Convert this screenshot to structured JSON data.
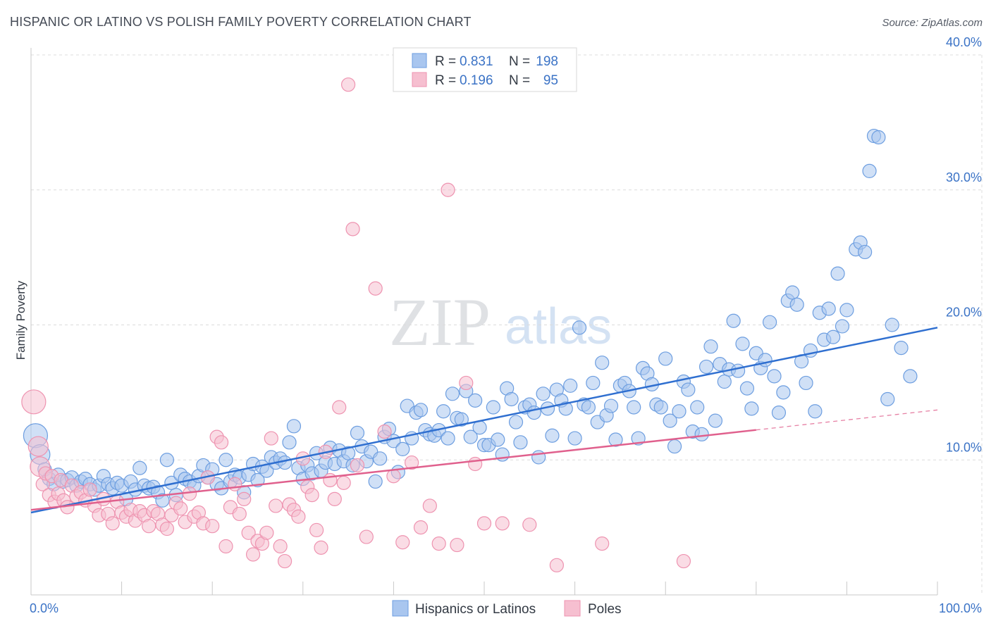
{
  "title": "HISPANIC OR LATINO VS POLISH FAMILY POVERTY CORRELATION CHART",
  "source": "Source: ZipAtlas.com",
  "watermark": {
    "zip": "ZIP",
    "atlas": "atlas"
  },
  "colors": {
    "blue_fill": "#a9c6ef",
    "blue_stroke": "#6d9ee0",
    "blue_line": "#2f6fd0",
    "pink_fill": "#f6bfd0",
    "pink_stroke": "#ee93b0",
    "pink_line": "#e0608d",
    "grid": "#dcdcdc",
    "tick_label": "#3b73c6"
  },
  "legend": {
    "rows": [
      {
        "r_label": "R =",
        "r_value": "0.831",
        "n_label": "N =",
        "n_value": "198"
      },
      {
        "r_label": "R =",
        "r_value": "0.196",
        "n_label": "N =",
        "n_value": "95"
      }
    ]
  },
  "chart_data": {
    "type": "scatter",
    "title": "HISPANIC OR LATINO VS POLISH FAMILY POVERTY CORRELATION CHART",
    "xlabel": "",
    "ylabel": "Family Poverty",
    "xlim": [
      0,
      100
    ],
    "ylim": [
      0,
      40
    ],
    "x_tick_labels": [
      "0.0%",
      "100.0%"
    ],
    "y_ticks": [
      10,
      20,
      30,
      40
    ],
    "y_tick_labels": [
      "10.0%",
      "20.0%",
      "30.0%",
      "40.0%"
    ],
    "grid": true,
    "legend_placement": "top-center",
    "series": [
      {
        "name": "Hispanics or Latinos",
        "R": 0.831,
        "N": 198,
        "trend": {
          "x": [
            0,
            100
          ],
          "y": [
            6.1,
            19.8
          ],
          "dashed_after": null
        },
        "points": [
          [
            0.5,
            11.8
          ],
          [
            1,
            10.4
          ],
          [
            1.5,
            9.3
          ],
          [
            2,
            8.6
          ],
          [
            2.5,
            8.2
          ],
          [
            3,
            8.9
          ],
          [
            3.5,
            8.4
          ],
          [
            4,
            8.5
          ],
          [
            4.5,
            8.7
          ],
          [
            5,
            8.1
          ],
          [
            5.5,
            8.4
          ],
          [
            6,
            8.6
          ],
          [
            6.5,
            8.2
          ],
          [
            7,
            7.8
          ],
          [
            7.5,
            8.1
          ],
          [
            8,
            8.8
          ],
          [
            8.5,
            8.2
          ],
          [
            9,
            7.9
          ],
          [
            9.5,
            8.3
          ],
          [
            10,
            8.1
          ],
          [
            10.5,
            7.1
          ],
          [
            11,
            8.4
          ],
          [
            11.5,
            7.8
          ],
          [
            12,
            9.4
          ],
          [
            12.5,
            8.1
          ],
          [
            13,
            7.9
          ],
          [
            13.5,
            8.0
          ],
          [
            14,
            7.6
          ],
          [
            14.5,
            7.0
          ],
          [
            15,
            10.0
          ],
          [
            15.5,
            8.3
          ],
          [
            16,
            7.4
          ],
          [
            16.5,
            8.9
          ],
          [
            17,
            8.6
          ],
          [
            17.5,
            8.4
          ],
          [
            18,
            8.1
          ],
          [
            18.5,
            8.8
          ],
          [
            19,
            9.6
          ],
          [
            19.5,
            8.7
          ],
          [
            20,
            9.3
          ],
          [
            20.5,
            8.2
          ],
          [
            21,
            7.9
          ],
          [
            21.5,
            10.0
          ],
          [
            22,
            8.4
          ],
          [
            22.5,
            8.9
          ],
          [
            23,
            8.7
          ],
          [
            23.5,
            7.6
          ],
          [
            24,
            8.9
          ],
          [
            24.5,
            9.7
          ],
          [
            25,
            8.5
          ],
          [
            25.5,
            9.5
          ],
          [
            26,
            9.2
          ],
          [
            26.5,
            10.2
          ],
          [
            27,
            9.8
          ],
          [
            27.5,
            10.1
          ],
          [
            28,
            9.8
          ],
          [
            28.5,
            11.3
          ],
          [
            29,
            12.5
          ],
          [
            29.5,
            9.4
          ],
          [
            30,
            8.6
          ],
          [
            30.5,
            9.6
          ],
          [
            31,
            9.0
          ],
          [
            31.5,
            10.5
          ],
          [
            32,
            9.2
          ],
          [
            32.5,
            9.8
          ],
          [
            33,
            10.9
          ],
          [
            33.5,
            9.7
          ],
          [
            34,
            10.7
          ],
          [
            34.5,
            9.9
          ],
          [
            35,
            10.5
          ],
          [
            35.5,
            9.6
          ],
          [
            36,
            12.0
          ],
          [
            36.5,
            11.0
          ],
          [
            37,
            9.9
          ],
          [
            37.5,
            10.6
          ],
          [
            38,
            8.4
          ],
          [
            38.5,
            10.1
          ],
          [
            39,
            11.7
          ],
          [
            39.5,
            12.3
          ],
          [
            40,
            11.4
          ],
          [
            40.5,
            9.1
          ],
          [
            41,
            10.8
          ],
          [
            41.5,
            14.0
          ],
          [
            42,
            11.6
          ],
          [
            42.5,
            13.5
          ],
          [
            43,
            13.7
          ],
          [
            43.5,
            12.2
          ],
          [
            44,
            11.9
          ],
          [
            44.5,
            11.8
          ],
          [
            45,
            12.2
          ],
          [
            45.5,
            13.6
          ],
          [
            46,
            11.6
          ],
          [
            46.5,
            14.9
          ],
          [
            47,
            13.1
          ],
          [
            47.5,
            13.0
          ],
          [
            48,
            15.1
          ],
          [
            48.5,
            11.7
          ],
          [
            49,
            14.4
          ],
          [
            49.5,
            12.4
          ],
          [
            50,
            11.1
          ],
          [
            50.5,
            11.1
          ],
          [
            51,
            13.9
          ],
          [
            51.5,
            11.5
          ],
          [
            52,
            10.4
          ],
          [
            52.5,
            15.3
          ],
          [
            53,
            14.5
          ],
          [
            53.5,
            12.8
          ],
          [
            54,
            11.3
          ],
          [
            54.5,
            13.9
          ],
          [
            55,
            14.1
          ],
          [
            55.5,
            13.5
          ],
          [
            56,
            10.2
          ],
          [
            56.5,
            14.9
          ],
          [
            57,
            13.8
          ],
          [
            57.5,
            11.8
          ],
          [
            58,
            15.2
          ],
          [
            58.5,
            14.4
          ],
          [
            59,
            13.8
          ],
          [
            59.5,
            15.5
          ],
          [
            60,
            11.6
          ],
          [
            60.5,
            19.8
          ],
          [
            61,
            14.1
          ],
          [
            61.5,
            13.9
          ],
          [
            62,
            15.7
          ],
          [
            62.5,
            12.8
          ],
          [
            63,
            17.2
          ],
          [
            63.5,
            13.3
          ],
          [
            64,
            14.0
          ],
          [
            64.5,
            11.5
          ],
          [
            65,
            15.5
          ],
          [
            65.5,
            15.7
          ],
          [
            66,
            15.1
          ],
          [
            66.5,
            13.9
          ],
          [
            67,
            11.6
          ],
          [
            67.5,
            16.8
          ],
          [
            68,
            16.4
          ],
          [
            68.5,
            15.6
          ],
          [
            69,
            14.1
          ],
          [
            69.5,
            13.9
          ],
          [
            70,
            17.5
          ],
          [
            70.5,
            12.9
          ],
          [
            71,
            11.0
          ],
          [
            71.5,
            13.6
          ],
          [
            72,
            15.8
          ],
          [
            72.5,
            15.2
          ],
          [
            73,
            12.1
          ],
          [
            73.5,
            13.9
          ],
          [
            74,
            11.9
          ],
          [
            74.5,
            16.9
          ],
          [
            75,
            18.4
          ],
          [
            75.5,
            12.9
          ],
          [
            76,
            17.1
          ],
          [
            76.5,
            15.8
          ],
          [
            77,
            16.7
          ],
          [
            77.5,
            20.3
          ],
          [
            78,
            16.6
          ],
          [
            78.5,
            18.6
          ],
          [
            79,
            15.3
          ],
          [
            79.5,
            13.8
          ],
          [
            80,
            17.9
          ],
          [
            80.5,
            16.8
          ],
          [
            81,
            17.4
          ],
          [
            81.5,
            20.2
          ],
          [
            82,
            16.2
          ],
          [
            82.5,
            13.5
          ],
          [
            83,
            15.0
          ],
          [
            83.5,
            21.8
          ],
          [
            84,
            22.4
          ],
          [
            84.5,
            21.5
          ],
          [
            85,
            17.3
          ],
          [
            85.5,
            15.7
          ],
          [
            86,
            18.1
          ],
          [
            86.5,
            13.6
          ],
          [
            87,
            20.9
          ],
          [
            87.5,
            18.9
          ],
          [
            88,
            21.2
          ],
          [
            88.5,
            19.1
          ],
          [
            89,
            23.8
          ],
          [
            89.5,
            19.9
          ],
          [
            90,
            21.1
          ],
          [
            91,
            25.6
          ],
          [
            91.5,
            26.1
          ],
          [
            92,
            25.4
          ],
          [
            92.5,
            31.4
          ],
          [
            93,
            34.0
          ],
          [
            93.5,
            33.9
          ],
          [
            94.5,
            14.5
          ],
          [
            95,
            20.0
          ],
          [
            96,
            18.3
          ],
          [
            97,
            16.2
          ]
        ]
      },
      {
        "name": "Poles",
        "R": 0.196,
        "N": 95,
        "trend": {
          "x": [
            0,
            100
          ],
          "y": [
            6.3,
            13.7
          ],
          "dashed_after": 80
        },
        "points": [
          [
            0.3,
            14.3
          ],
          [
            0.8,
            11.0
          ],
          [
            1,
            9.5
          ],
          [
            1.3,
            8.2
          ],
          [
            1.6,
            9.0
          ],
          [
            2,
            7.4
          ],
          [
            2.3,
            8.8
          ],
          [
            2.6,
            6.9
          ],
          [
            3,
            7.5
          ],
          [
            3.3,
            8.5
          ],
          [
            3.6,
            7.0
          ],
          [
            4,
            6.5
          ],
          [
            4.5,
            8.1
          ],
          [
            5,
            7.3
          ],
          [
            5.5,
            7.6
          ],
          [
            6,
            7.0
          ],
          [
            6.5,
            7.8
          ],
          [
            7,
            6.6
          ],
          [
            7.5,
            5.9
          ],
          [
            8,
            7.1
          ],
          [
            8.5,
            6.0
          ],
          [
            9,
            5.3
          ],
          [
            9.5,
            6.9
          ],
          [
            10,
            6.1
          ],
          [
            10.5,
            5.8
          ],
          [
            11,
            6.3
          ],
          [
            11.5,
            5.5
          ],
          [
            12,
            6.2
          ],
          [
            12.5,
            5.9
          ],
          [
            13,
            5.1
          ],
          [
            13.5,
            6.2
          ],
          [
            14,
            6.0
          ],
          [
            14.5,
            5.2
          ],
          [
            15,
            4.9
          ],
          [
            15.5,
            5.9
          ],
          [
            16,
            6.8
          ],
          [
            16.5,
            6.4
          ],
          [
            17,
            5.4
          ],
          [
            17.5,
            7.5
          ],
          [
            18,
            5.8
          ],
          [
            18.5,
            6.1
          ],
          [
            19,
            5.3
          ],
          [
            19.5,
            8.7
          ],
          [
            20,
            5.1
          ],
          [
            20.5,
            11.7
          ],
          [
            21,
            11.3
          ],
          [
            21.5,
            3.6
          ],
          [
            22,
            6.5
          ],
          [
            22.5,
            8.2
          ],
          [
            23,
            6.0
          ],
          [
            23.5,
            7.1
          ],
          [
            24,
            4.6
          ],
          [
            24.5,
            3.0
          ],
          [
            25,
            4.0
          ],
          [
            25.5,
            3.8
          ],
          [
            26,
            4.6
          ],
          [
            26.5,
            11.6
          ],
          [
            27,
            6.6
          ],
          [
            27.5,
            3.6
          ],
          [
            28,
            2.5
          ],
          [
            28.5,
            6.7
          ],
          [
            29,
            6.3
          ],
          [
            29.5,
            5.8
          ],
          [
            30,
            10.1
          ],
          [
            30.5,
            8.0
          ],
          [
            31,
            7.4
          ],
          [
            31.5,
            4.8
          ],
          [
            32,
            3.5
          ],
          [
            32.5,
            10.6
          ],
          [
            33,
            8.5
          ],
          [
            33.5,
            7.1
          ],
          [
            34,
            13.9
          ],
          [
            34.5,
            8.3
          ],
          [
            35,
            37.8
          ],
          [
            35.5,
            27.1
          ],
          [
            36,
            9.6
          ],
          [
            37,
            4.3
          ],
          [
            38,
            22.7
          ],
          [
            39,
            12.1
          ],
          [
            40,
            8.8
          ],
          [
            41,
            3.9
          ],
          [
            42,
            9.8
          ],
          [
            43,
            5.0
          ],
          [
            44,
            6.6
          ],
          [
            45,
            3.8
          ],
          [
            46,
            30.0
          ],
          [
            47,
            3.7
          ],
          [
            48,
            15.7
          ],
          [
            49,
            9.7
          ],
          [
            50,
            5.3
          ],
          [
            52,
            5.3
          ],
          [
            55,
            5.2
          ],
          [
            58,
            2.2
          ],
          [
            63,
            3.8
          ],
          [
            72,
            2.5
          ]
        ]
      }
    ]
  }
}
